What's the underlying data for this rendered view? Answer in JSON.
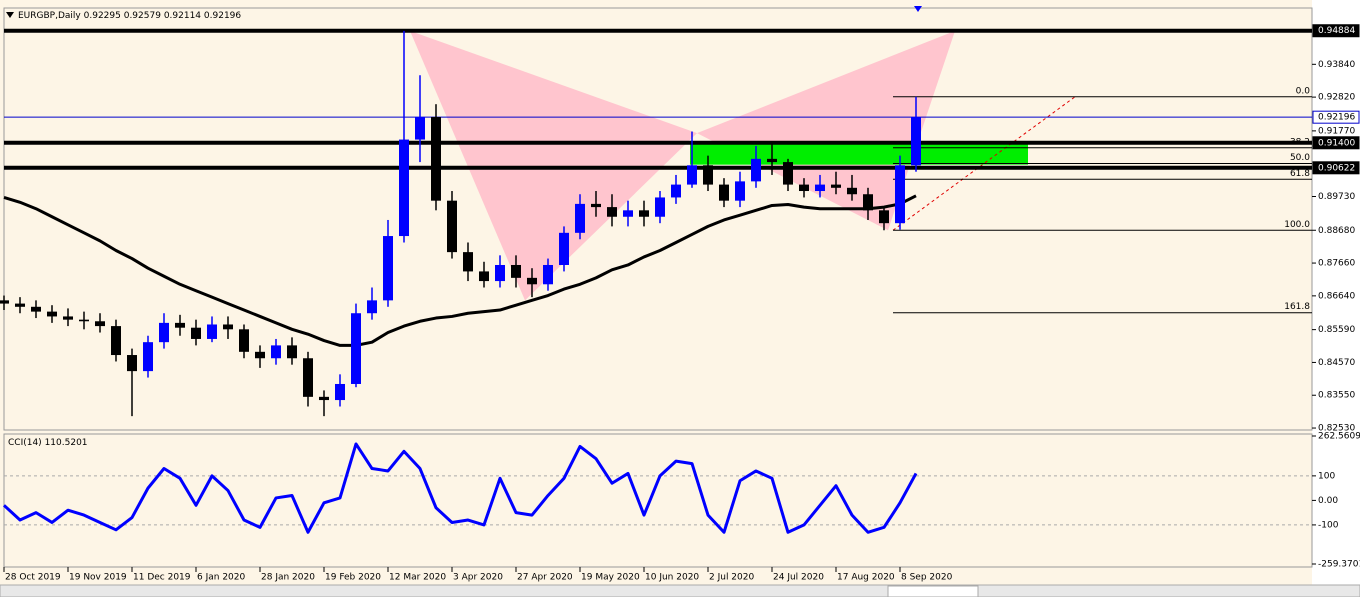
{
  "chart_data": [
    {
      "type": "candlestick",
      "title": "EURGBP,Daily",
      "last_ohlc": [
        0.92295,
        0.92579,
        0.92114,
        0.92196
      ],
      "x": [
        0,
        4,
        8,
        12,
        16,
        20,
        24,
        28,
        32,
        36,
        40,
        44,
        48,
        52,
        56,
        60,
        64,
        68,
        72,
        76,
        80,
        84,
        88,
        92,
        96,
        100,
        104,
        108,
        112,
        116,
        120,
        124,
        128,
        132,
        136,
        140,
        144,
        148,
        152,
        156,
        160,
        164,
        168,
        172,
        176,
        180,
        184,
        188,
        192,
        196,
        200,
        204,
        208,
        212,
        216,
        220,
        224,
        228
      ],
      "open": [
        0.865,
        0.864,
        0.863,
        0.8615,
        0.86,
        0.859,
        0.8585,
        0.857,
        0.848,
        0.843,
        0.852,
        0.858,
        0.8565,
        0.853,
        0.8575,
        0.856,
        0.849,
        0.847,
        0.851,
        0.847,
        0.835,
        0.834,
        0.839,
        0.861,
        0.865,
        0.885,
        0.915,
        0.922,
        0.896,
        0.88,
        0.874,
        0.871,
        0.876,
        0.872,
        0.87,
        0.876,
        0.886,
        0.895,
        0.894,
        0.891,
        0.893,
        0.891,
        0.897,
        0.901,
        0.907,
        0.901,
        0.896,
        0.902,
        0.909,
        0.908,
        0.901,
        0.899,
        0.901,
        0.9,
        0.898,
        0.893,
        0.889,
        0.907
      ],
      "high": [
        0.8665,
        0.866,
        0.865,
        0.8635,
        0.8625,
        0.8615,
        0.861,
        0.859,
        0.85,
        0.854,
        0.861,
        0.8605,
        0.859,
        0.86,
        0.86,
        0.8575,
        0.851,
        0.853,
        0.8535,
        0.849,
        0.837,
        0.842,
        0.864,
        0.869,
        0.89,
        0.9488,
        0.935,
        0.926,
        0.899,
        0.883,
        0.877,
        0.879,
        0.879,
        0.875,
        0.878,
        0.888,
        0.898,
        0.899,
        0.898,
        0.896,
        0.896,
        0.899,
        0.904,
        0.9175,
        0.91,
        0.903,
        0.905,
        0.913,
        0.914,
        0.909,
        0.903,
        0.904,
        0.905,
        0.904,
        0.9,
        0.894,
        0.91,
        0.9283
      ],
      "low": [
        0.862,
        0.861,
        0.8595,
        0.858,
        0.857,
        0.856,
        0.855,
        0.846,
        0.829,
        0.841,
        0.85,
        0.854,
        0.851,
        0.852,
        0.853,
        0.847,
        0.844,
        0.845,
        0.845,
        0.832,
        0.829,
        0.832,
        0.838,
        0.859,
        0.863,
        0.883,
        0.908,
        0.893,
        0.878,
        0.871,
        0.869,
        0.869,
        0.869,
        0.866,
        0.868,
        0.874,
        0.884,
        0.891,
        0.888,
        0.888,
        0.888,
        0.889,
        0.895,
        0.9,
        0.899,
        0.894,
        0.894,
        0.9,
        0.904,
        0.899,
        0.897,
        0.897,
        0.898,
        0.896,
        0.89,
        0.8868,
        0.887,
        0.905
      ],
      "close": [
        0.864,
        0.863,
        0.8615,
        0.86,
        0.859,
        0.8585,
        0.857,
        0.848,
        0.843,
        0.852,
        0.858,
        0.8565,
        0.853,
        0.8575,
        0.856,
        0.849,
        0.847,
        0.851,
        0.847,
        0.835,
        0.834,
        0.839,
        0.861,
        0.865,
        0.885,
        0.915,
        0.922,
        0.896,
        0.88,
        0.874,
        0.871,
        0.876,
        0.872,
        0.87,
        0.876,
        0.886,
        0.895,
        0.894,
        0.891,
        0.893,
        0.891,
        0.897,
        0.901,
        0.907,
        0.901,
        0.896,
        0.902,
        0.909,
        0.908,
        0.901,
        0.899,
        0.901,
        0.9,
        0.898,
        0.893,
        0.889,
        0.907,
        0.922
      ],
      "up_color": "#0000ff",
      "down_color": "#000000",
      "ma_values": [
        0.897,
        0.8955,
        0.8935,
        0.891,
        0.8885,
        0.886,
        0.8835,
        0.8805,
        0.878,
        0.875,
        0.8725,
        0.87,
        0.868,
        0.866,
        0.864,
        0.862,
        0.86,
        0.858,
        0.856,
        0.8545,
        0.8525,
        0.851,
        0.851,
        0.852,
        0.855,
        0.857,
        0.8585,
        0.8595,
        0.86,
        0.861,
        0.8615,
        0.862,
        0.8635,
        0.865,
        0.8665,
        0.8685,
        0.87,
        0.872,
        0.8745,
        0.876,
        0.8785,
        0.8805,
        0.883,
        0.8855,
        0.888,
        0.89,
        0.8915,
        0.893,
        0.8945,
        0.8948,
        0.894,
        0.8935,
        0.8935,
        0.8935,
        0.8935,
        0.894,
        0.895,
        0.8975
      ],
      "ma_color": "#000000",
      "xlim": [
        0,
        327
      ],
      "ylim": [
        0.82469,
        0.95591
      ],
      "yticks": [
        {
          "value": 0.9384,
          "label": "0.93840"
        },
        {
          "value": 0.9282,
          "label": "0.92820"
        },
        {
          "value": 0.9177,
          "label": "0.91770"
        },
        {
          "value": 0.8973,
          "label": "0.89730"
        },
        {
          "value": 0.8868,
          "label": "0.88680"
        },
        {
          "value": 0.8766,
          "label": "0.87660"
        },
        {
          "value": 0.8664,
          "label": "0.86640"
        },
        {
          "value": 0.8559,
          "label": "0.85590"
        },
        {
          "value": 0.8457,
          "label": "0.84570"
        },
        {
          "value": 0.8355,
          "label": "0.83550"
        },
        {
          "value": 0.8253,
          "label": "0.82530"
        }
      ],
      "levels": [
        {
          "price": 0.94884,
          "width": 4,
          "color": "#000000"
        },
        {
          "price": {
            "value": 0.914,
            "label": "0.91400"
          },
          "width": 4,
          "color": "#000000"
        },
        {
          "price": 0.90622,
          "width": 4,
          "color": "#000000"
        },
        {
          "price": 0.92196,
          "width": 1,
          "color": "#0000cc"
        }
      ],
      "pattern": {
        "x": [
          101.5,
          130.25,
          173.25,
          221,
          237.75
        ],
        "y": [
          0.9488,
          0.865,
          0.917,
          0.8868,
          0.9488
        ],
        "color": "#ffc0cb"
      },
      "zone": {
        "x": [
          171.5,
          256
        ],
        "y": [
          0.9072,
          0.914
        ],
        "color": "#00ee00"
      },
      "fib": {
        "x": [
          222.25,
          327
        ],
        "trend_end": 267.75,
        "high": 0.9283,
        "low": 0.8868,
        "levels": [
          {
            "value": 0,
            "label": "0.0"
          },
          38.2,
          {
            "value": 50,
            "label": "50.0"
          },
          61.8,
          {
            "value": 100,
            "label": "100.0"
          },
          161.8
        ]
      }
    },
    {
      "type": "line",
      "title": "CCI(14)",
      "value": 110.5201,
      "color": "#0000ff",
      "x": [
        0,
        4,
        8,
        12,
        16,
        20,
        24,
        28,
        32,
        36,
        40,
        44,
        48,
        52,
        56,
        60,
        64,
        68,
        72,
        76,
        80,
        84,
        88,
        92,
        96,
        100,
        104,
        108,
        112,
        116,
        120,
        124,
        128,
        132,
        136,
        140,
        144,
        148,
        152,
        156,
        160,
        164,
        168,
        172,
        176,
        180,
        184,
        188,
        192,
        196,
        200,
        204,
        208,
        212,
        216,
        220,
        224,
        228
      ],
      "values": [
        -20,
        -80,
        -50,
        -90,
        -40,
        -60,
        -90,
        -120,
        -70,
        50,
        130,
        90,
        -20,
        100,
        40,
        -80,
        -110,
        10,
        20,
        -130,
        -10,
        10,
        230,
        130,
        120,
        200,
        130,
        -30,
        -90,
        -80,
        -100,
        90,
        -50,
        -60,
        20,
        90,
        220,
        170,
        70,
        110,
        -60,
        100,
        160,
        150,
        -60,
        -130,
        80,
        120,
        90,
        -130,
        -100,
        -20,
        60,
        -60,
        -130,
        -110,
        -10,
        110
      ],
      "xlim": [
        0,
        327
      ],
      "ylim": [
        -259.3701,
        262.5609
      ],
      "yticks": [
        262.5609,
        100,
        {
          "value": 0,
          "label": "0.00"
        },
        -100,
        -259.3701
      ],
      "dashed_levels": [
        100,
        -100
      ],
      "xticks": [
        {
          "value": 0,
          "label": "28 Oct 2019"
        },
        {
          "value": 16,
          "label": "19 Nov 2019"
        },
        {
          "value": 32,
          "label": "11 Dec 2019"
        },
        {
          "value": 48,
          "label": "6 Jan 2020"
        },
        {
          "value": 64,
          "label": "28 Jan 2020"
        },
        {
          "value": 80,
          "label": "19 Feb 2020"
        },
        {
          "value": 96,
          "label": "12 Mar 2020"
        },
        {
          "value": 112,
          "label": "3 Apr 2020"
        },
        {
          "value": 128,
          "label": "27 Apr 2020"
        },
        {
          "value": 144,
          "label": "19 May 2020"
        },
        {
          "value": 160,
          "label": "10 Jun 2020"
        },
        {
          "value": 176,
          "label": "2 Jul 2020"
        },
        {
          "value": 192,
          "label": "24 Jul 2020"
        },
        {
          "value": 208,
          "label": "17 Aug 2020"
        },
        {
          "value": 224,
          "label": "8 Sep 2020"
        }
      ]
    }
  ]
}
